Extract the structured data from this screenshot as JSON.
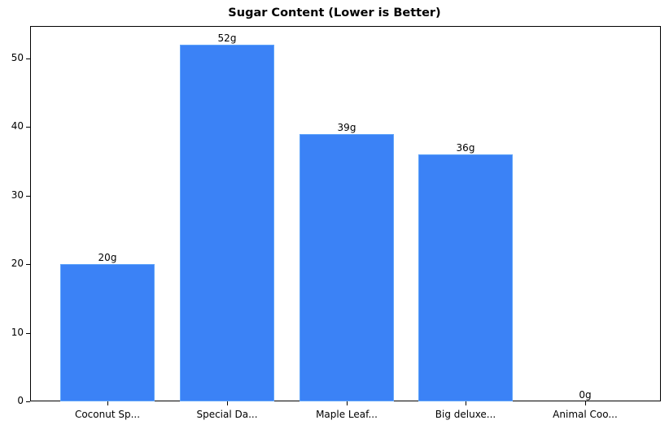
{
  "chart_data": {
    "type": "bar",
    "title": "Sugar Content (Lower is Better)",
    "xlabel": "",
    "ylabel": "",
    "categories": [
      "Coconut Sp...",
      "Special Da...",
      "Maple Leaf...",
      "Big deluxe...",
      "Animal Coo..."
    ],
    "values": [
      20,
      52,
      39,
      36,
      0
    ],
    "value_labels": [
      "20g",
      "52g",
      "39g",
      "36g",
      "0g"
    ],
    "ylim": [
      0,
      54.6
    ],
    "yticks": [
      0,
      10,
      20,
      30,
      40,
      50
    ],
    "grid": false,
    "legend": null,
    "bar_color": "#3b82f6"
  }
}
